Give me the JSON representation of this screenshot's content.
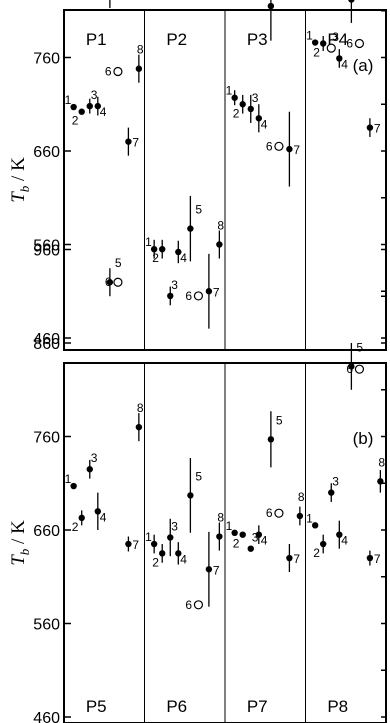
{
  "chart_data": [
    {
      "id": "a",
      "type": "scatter",
      "panel_label": "(a)",
      "ylabel": "T_b / K",
      "ylabel_main": "T",
      "ylabel_sub": "b",
      "ylabel_unit": " / K",
      "ylim": [
        460,
        985
      ],
      "yticks": [
        460,
        560,
        660,
        760,
        860,
        960
      ],
      "yticks_right": [
        460,
        510,
        560,
        610,
        660,
        710,
        760,
        810,
        860,
        910,
        960
      ],
      "groups": [
        "P1",
        "P2",
        "P3",
        "P4"
      ],
      "series": [
        {
          "group": "P1",
          "points": [
            {
              "n": "1",
              "y": 707,
              "err": 0,
              "open": false
            },
            {
              "n": "2",
              "y": 702,
              "err": 0,
              "open": false
            },
            {
              "n": "3",
              "y": 708,
              "err": 8,
              "open": false
            },
            {
              "n": "4",
              "y": 708,
              "err": 10,
              "open": false
            },
            {
              "n": "5",
              "y": 860,
              "err": 47,
              "open": false
            },
            {
              "n": "6",
              "y": 745,
              "err": 0,
              "open": true
            },
            {
              "n": "7",
              "y": 670,
              "err": 15,
              "open": false
            },
            {
              "n": "8",
              "y": 748,
              "err": 15,
              "open": false
            }
          ]
        },
        {
          "group": "P2",
          "points": [
            {
              "n": "1",
              "y": 555,
              "err": 10,
              "open": false
            },
            {
              "n": "2",
              "y": 555,
              "err": 10,
              "open": false
            },
            {
              "n": "3",
              "y": 505,
              "err": 10,
              "open": false
            },
            {
              "n": "4",
              "y": 552,
              "err": 12,
              "open": false
            },
            {
              "n": "5",
              "y": 577,
              "err": 35,
              "open": false
            },
            {
              "n": "6",
              "y": 505,
              "err": 0,
              "open": true
            },
            {
              "n": "7",
              "y": 510,
              "err": 40,
              "open": false
            },
            {
              "n": "8",
              "y": 560,
              "err": 15,
              "open": false
            }
          ]
        },
        {
          "group": "P3",
          "points": [
            {
              "n": "1",
              "y": 717,
              "err": 8,
              "open": false
            },
            {
              "n": "2",
              "y": 710,
              "err": 10,
              "open": false
            },
            {
              "n": "3",
              "y": 705,
              "err": 15,
              "open": false
            },
            {
              "n": "4",
              "y": 695,
              "err": 15,
              "open": false
            },
            {
              "n": "5",
              "y": 815,
              "err": 37,
              "open": false
            },
            {
              "n": "6",
              "y": 665,
              "err": 0,
              "open": true
            },
            {
              "n": "7",
              "y": 662,
              "err": 40,
              "open": false
            }
          ]
        },
        {
          "group": "P4",
          "points": [
            {
              "n": "1",
              "y": 776,
              "err": 0,
              "open": false
            },
            {
              "n": "2",
              "y": 775,
              "err": 8,
              "open": false
            },
            {
              "n": "3",
              "y": 770,
              "err": 0,
              "open": true
            },
            {
              "n": "4",
              "y": 759,
              "err": 10,
              "open": false
            },
            {
              "n": "5",
              "y": 822,
              "err": 25,
              "open": false
            },
            {
              "n": "6",
              "y": 775,
              "err": 0,
              "open": true
            },
            {
              "n": "7",
              "y": 685,
              "err": 10,
              "open": false
            }
          ]
        }
      ]
    },
    {
      "id": "b",
      "type": "scatter",
      "panel_label": "(b)",
      "ylabel": "T_b / K",
      "ylabel_main": "T",
      "ylabel_sub": "b",
      "ylabel_unit": " / K",
      "ylim": [
        460,
        985
      ],
      "yticks": [
        460,
        560,
        660,
        760,
        860,
        960
      ],
      "yticks_right": [
        460,
        510,
        560,
        610,
        660,
        710,
        760,
        810,
        860,
        910,
        960
      ],
      "groups": [
        "P5",
        "P6",
        "P7",
        "P8"
      ],
      "series": [
        {
          "group": "P5",
          "points": [
            {
              "n": "1",
              "y": 707,
              "err": 0,
              "open": false
            },
            {
              "n": "2",
              "y": 673,
              "err": 8,
              "open": false
            },
            {
              "n": "3",
              "y": 725,
              "err": 10,
              "open": false
            },
            {
              "n": "4",
              "y": 680,
              "err": 20,
              "open": false
            },
            {
              "n": "5",
              "y": 925,
              "err": 15,
              "open": false
            },
            {
              "n": "6",
              "y": 925,
              "err": 0,
              "open": true
            },
            {
              "n": "7",
              "y": 645,
              "err": 8,
              "open": false
            },
            {
              "n": "8",
              "y": 770,
              "err": 15,
              "open": false
            }
          ]
        },
        {
          "group": "P6",
          "points": [
            {
              "n": "1",
              "y": 645,
              "err": 10,
              "open": false
            },
            {
              "n": "2",
              "y": 635,
              "err": 10,
              "open": false
            },
            {
              "n": "3",
              "y": 652,
              "err": 20,
              "open": false
            },
            {
              "n": "4",
              "y": 635,
              "err": 12,
              "open": false
            },
            {
              "n": "5",
              "y": 697,
              "err": 40,
              "open": false
            },
            {
              "n": "6",
              "y": 580,
              "err": 0,
              "open": true
            },
            {
              "n": "7",
              "y": 618,
              "err": 40,
              "open": false
            },
            {
              "n": "8",
              "y": 653,
              "err": 15,
              "open": false
            }
          ]
        },
        {
          "group": "P7",
          "points": [
            {
              "n": "1",
              "y": 657,
              "err": 0,
              "open": false
            },
            {
              "n": "2",
              "y": 655,
              "err": 0,
              "open": false
            },
            {
              "n": "3",
              "y": 640,
              "err": 0,
              "open": false
            },
            {
              "n": "4",
              "y": 655,
              "err": 10,
              "open": false
            },
            {
              "n": "5",
              "y": 757,
              "err": 30,
              "open": false
            },
            {
              "n": "6",
              "y": 678,
              "err": 0,
              "open": true
            },
            {
              "n": "7",
              "y": 630,
              "err": 15,
              "open": false
            },
            {
              "n": "8",
              "y": 675,
              "err": 10,
              "open": false
            }
          ]
        },
        {
          "group": "P8",
          "points": [
            {
              "n": "1",
              "y": 665,
              "err": 0,
              "open": false
            },
            {
              "n": "2",
              "y": 645,
              "err": 10,
              "open": false
            },
            {
              "n": "3",
              "y": 700,
              "err": 10,
              "open": false
            },
            {
              "n": "4",
              "y": 655,
              "err": 15,
              "open": false
            },
            {
              "n": "5",
              "y": 835,
              "err": 25,
              "open": false
            },
            {
              "n": "6",
              "y": 832,
              "err": 0,
              "open": true
            },
            {
              "n": "7",
              "y": 630,
              "err": 8,
              "open": false
            },
            {
              "n": "8",
              "y": 712,
              "err": 12,
              "open": false
            }
          ]
        }
      ]
    }
  ]
}
